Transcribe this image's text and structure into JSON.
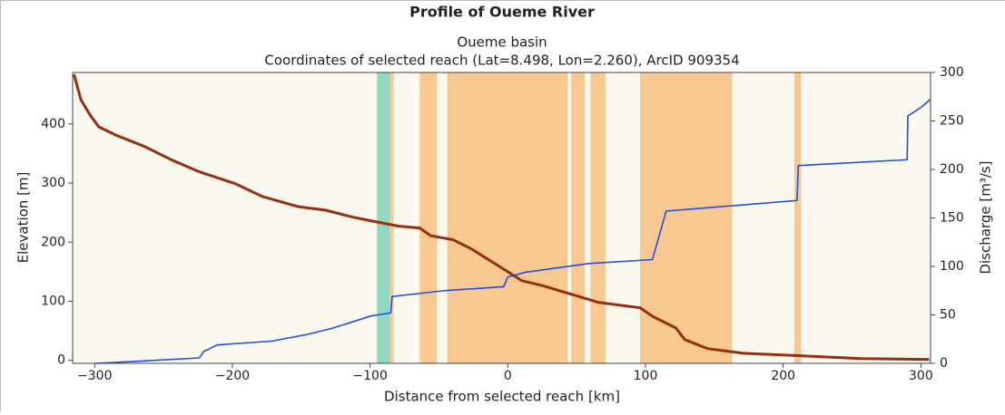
{
  "chart_data": {
    "type": "line",
    "title": "Profile of Oueme River",
    "subtitle": "Oueme basin",
    "subtitle2": "Coordinates of selected reach (Lat=8.498, Lon=2.260), ArcID 909354",
    "xlabel": "Distance from selected reach [km]",
    "ylabel": "Elevation [m]",
    "y2label": "Discharge [m³/s]",
    "xlim": [
      -316,
      307
    ],
    "ylim": [
      -5,
      487
    ],
    "y2lim": [
      0,
      300
    ],
    "xticks": [
      {
        "value": -300,
        "label": "−300"
      },
      {
        "value": -200,
        "label": "−200"
      },
      {
        "value": -100,
        "label": "−100"
      },
      0,
      100,
      200,
      300
    ],
    "yticks": [
      0,
      100,
      200,
      300,
      400
    ],
    "y2ticks": [
      0,
      50,
      100,
      150,
      200,
      250,
      300
    ],
    "background": "#fbf9ef",
    "spans": [
      {
        "start": -95,
        "end": -85.7,
        "color": "#8ed9bf"
      },
      {
        "start": -85.7,
        "end": -83,
        "color": "#f8c892"
      },
      {
        "start": -64,
        "end": -51.4,
        "color": "#f8c892"
      },
      {
        "start": -44,
        "end": 43.5,
        "color": "#f8c892"
      },
      {
        "start": 46,
        "end": 56,
        "color": "#f8c892"
      },
      {
        "start": 60,
        "end": 71,
        "color": "#f8c892"
      },
      {
        "start": 96,
        "end": 163,
        "color": "#f8c892"
      },
      {
        "start": 208,
        "end": 213,
        "color": "#f8c892"
      }
    ],
    "series": [
      {
        "color": "#952f10",
        "axis": "y",
        "x": [
          -315,
          -310,
          -303,
          -297,
          -283.5,
          -264,
          -244,
          -224,
          -198,
          -178,
          -152,
          -132,
          -112,
          -92.4,
          -79,
          -64,
          -56,
          -39.6,
          -26,
          -13,
          0,
          10,
          26,
          46,
          66,
          96,
          105.5,
          122,
          128.6,
          145,
          171,
          211,
          257,
          306
        ],
        "values": [
          484,
          441,
          414,
          395,
          380,
          362,
          339,
          319,
          299,
          277,
          260,
          254,
          242,
          233,
          227,
          224,
          211,
          204,
          188,
          169,
          150,
          135,
          126,
          112,
          98,
          89,
          74,
          55,
          35,
          20,
          12,
          8,
          3,
          1.5
        ]
      },
      {
        "color": "#1f4ee0",
        "axis": "y2",
        "x": [
          -300,
          -270,
          -224,
          -221,
          -211,
          -171,
          -145,
          -128,
          -99,
          -85,
          -84,
          -46,
          -3,
          0,
          13,
          59,
          105,
          115,
          158,
          210,
          211,
          290,
          290.5,
          300,
          306.6
        ],
        "values": [
          0,
          2,
          5.6,
          12,
          19,
          23,
          30,
          36,
          49,
          52,
          69,
          75,
          79,
          89,
          94,
          103,
          107,
          157,
          162,
          168,
          204,
          210,
          255,
          264,
          272
        ]
      }
    ]
  }
}
